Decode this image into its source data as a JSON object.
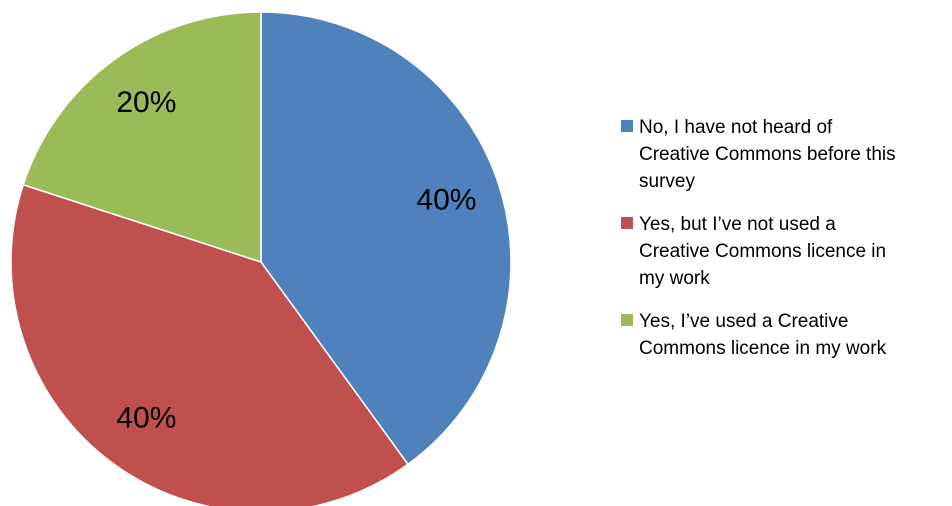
{
  "chart_data": {
    "type": "pie",
    "title": "",
    "legend_position": "right",
    "slices": [
      {
        "name": "No, I have not heard of\nCreative Commons before this\nsurvey",
        "value": 40,
        "label": "40%",
        "color": "#4F81BD"
      },
      {
        "name": "Yes, but I’ve not used a\nCreative Commons licence in\nmy work",
        "value": 40,
        "label": "40%",
        "color": "#C0504D"
      },
      {
        "name": "Yes, I’ve used a Creative\nCommons licence in my work",
        "value": 20,
        "label": "20%",
        "color": "#9BBB59"
      }
    ]
  }
}
